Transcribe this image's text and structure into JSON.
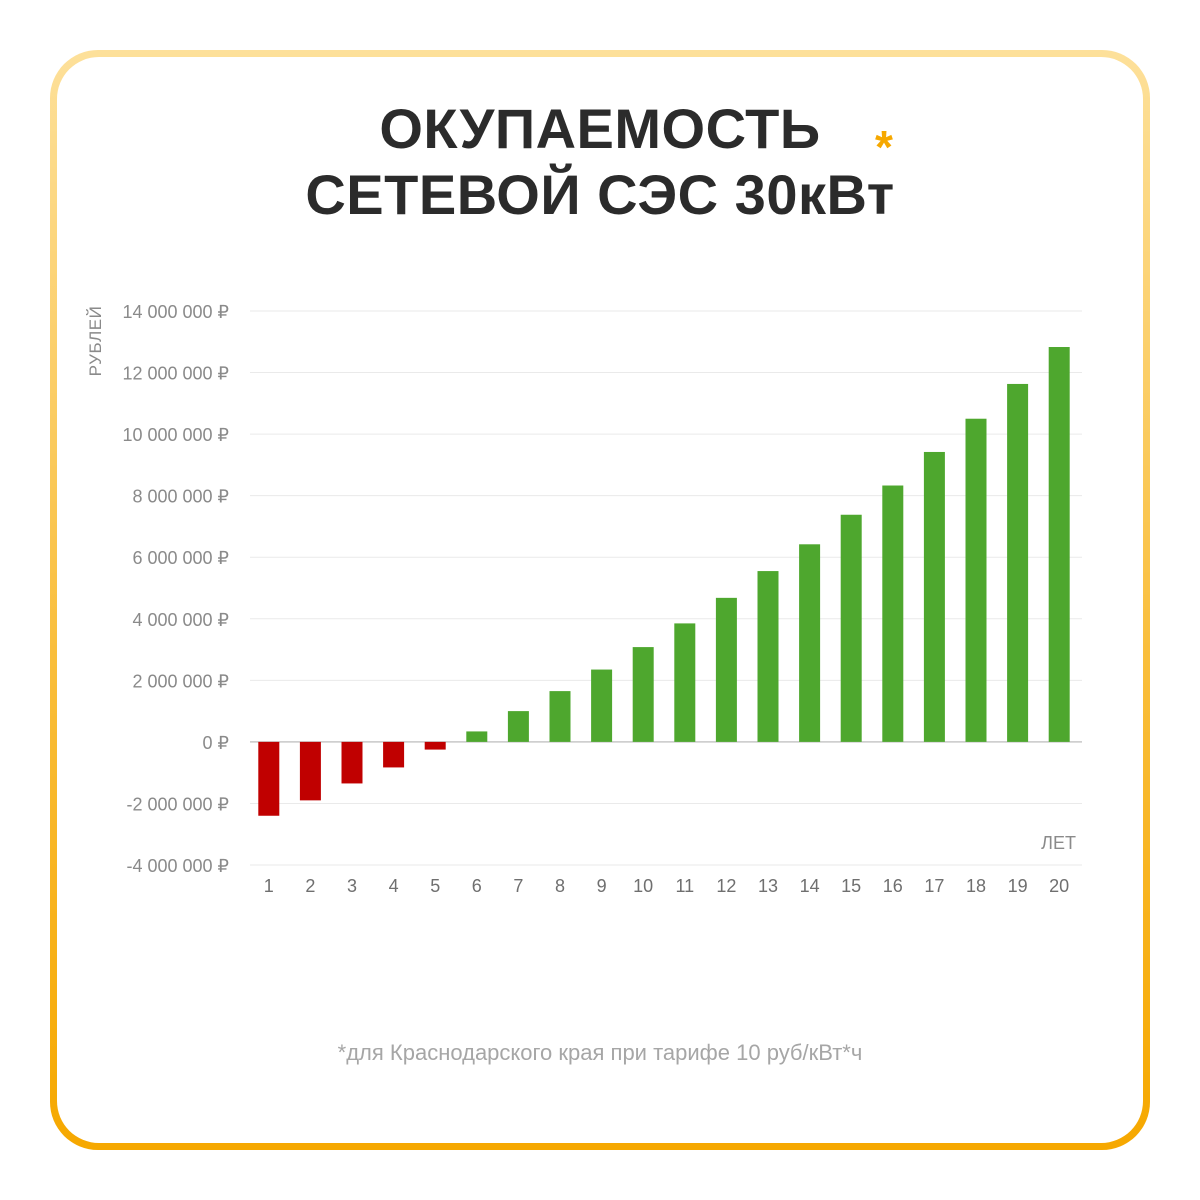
{
  "title": {
    "line1": "ОКУПАЕМОСТЬ",
    "line2": "СЕТЕВОЙ СЭС 30кВт",
    "asterisk": "*"
  },
  "footnote": "*для Краснодарского края при тарифе 10 руб/кВт*ч",
  "colors": {
    "negative": "#c00000",
    "positive": "#4ea72e",
    "frame_top": "#fde09a",
    "frame_bottom": "#f6a800",
    "accent": "#f6a800"
  },
  "chart_data": {
    "type": "bar",
    "ylabel": "РУБЛЕЙ",
    "xlabel": "ЛЕТ",
    "ylim": [
      -4000000,
      14000000
    ],
    "grid": true,
    "yticks": [
      {
        "value": 14000000,
        "label": "14 000 000 ₽"
      },
      {
        "value": 12000000,
        "label": "12 000 000 ₽"
      },
      {
        "value": 10000000,
        "label": "10 000 000 ₽"
      },
      {
        "value": 8000000,
        "label": "8 000 000 ₽"
      },
      {
        "value": 6000000,
        "label": "6 000 000 ₽"
      },
      {
        "value": 4000000,
        "label": "4 000 000 ₽"
      },
      {
        "value": 2000000,
        "label": "2 000 000 ₽"
      },
      {
        "value": 0,
        "label": "0 ₽"
      },
      {
        "value": -2000000,
        "label": "-2 000 000 ₽"
      },
      {
        "value": -4000000,
        "label": "-4 000 000 ₽"
      }
    ],
    "categories": [
      "1",
      "2",
      "3",
      "4",
      "5",
      "6",
      "7",
      "8",
      "9",
      "10",
      "11",
      "12",
      "13",
      "14",
      "15",
      "16",
      "17",
      "18",
      "19",
      "20"
    ],
    "values": [
      -2400000,
      -1900000,
      -1350000,
      -830000,
      -250000,
      340000,
      1000000,
      1650000,
      2350000,
      3080000,
      3850000,
      4680000,
      5550000,
      6420000,
      7380000,
      8330000,
      9420000,
      10500000,
      11630000,
      12830000
    ]
  }
}
